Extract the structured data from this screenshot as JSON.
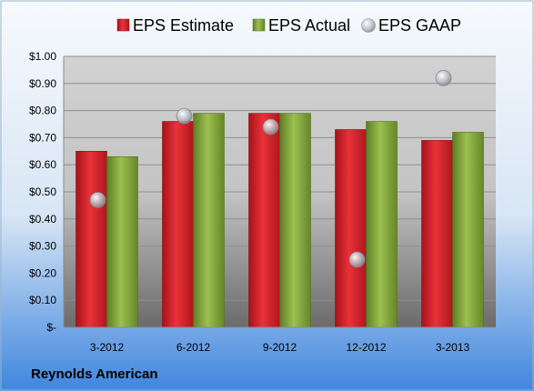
{
  "footer": {
    "company": "Reynolds American"
  },
  "chart_data": {
    "type": "bar",
    "categories": [
      "3-2012",
      "6-2012",
      "9-2012",
      "12-2012",
      "3-2013"
    ],
    "series": [
      {
        "name": "EPS Estimate",
        "kind": "bar",
        "color": "#d42127",
        "values": [
          0.65,
          0.76,
          0.79,
          0.73,
          0.69
        ]
      },
      {
        "name": "EPS Actual",
        "kind": "bar",
        "color": "#84a73c",
        "values": [
          0.63,
          0.79,
          0.79,
          0.76,
          0.72
        ]
      },
      {
        "name": "EPS GAAP",
        "kind": "scatter",
        "color": "#a9aeb5",
        "values": [
          0.47,
          0.78,
          0.74,
          0.25,
          0.92
        ]
      }
    ],
    "ylim": [
      0,
      1.0
    ],
    "y_ticks": [
      "$-",
      "$0.10",
      "$0.20",
      "$0.30",
      "$0.40",
      "$0.50",
      "$0.60",
      "$0.70",
      "$0.80",
      "$0.90",
      "$1.00"
    ],
    "y_tick_values": [
      0,
      0.1,
      0.2,
      0.3,
      0.4,
      0.5,
      0.6,
      0.7,
      0.8,
      0.9,
      1.0
    ],
    "legend_position": "top",
    "grid": true,
    "title": "",
    "xlabel": "",
    "ylabel": ""
  }
}
